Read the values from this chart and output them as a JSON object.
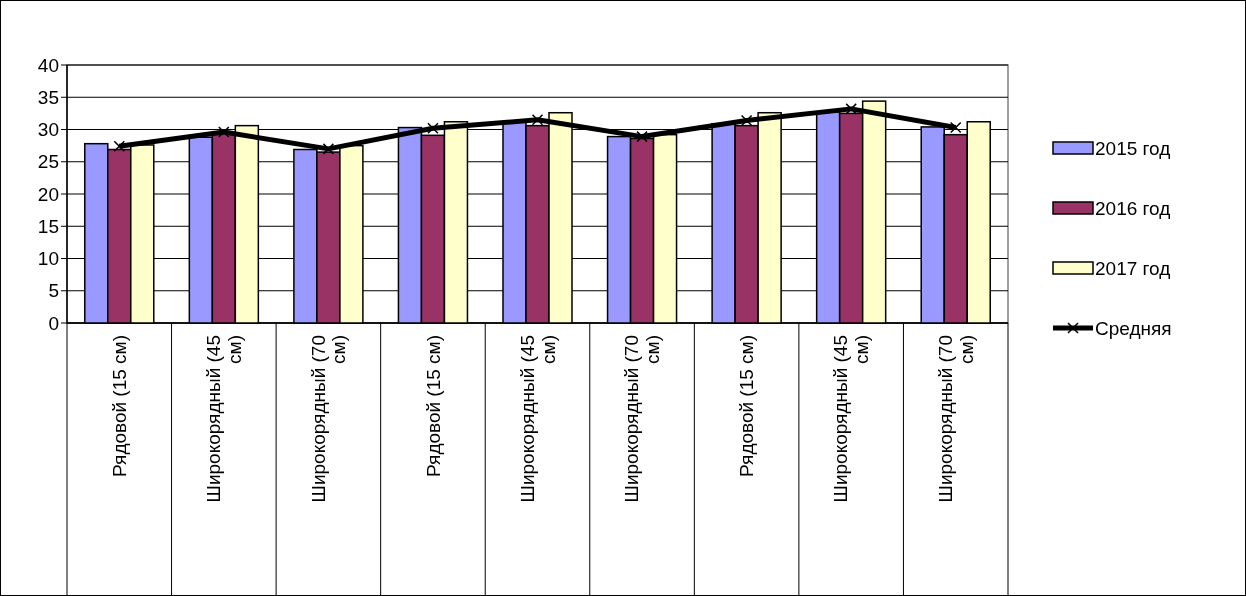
{
  "chart_data": {
    "type": "bar",
    "categories": [
      "Рядовой (15 см)",
      "Широкорядный (45 см)",
      "Широкорядный (70 см)",
      "Рядовой (15 см)",
      "Широкорядный (45 см)",
      "Широкорядный (70 см)",
      "Рядовой (15 см)",
      "Широкорядный (45 см)",
      "Широкорядный (70 см)"
    ],
    "series": [
      {
        "name": "2015 год",
        "color": "#9999ff",
        "values": [
          27.8,
          28.8,
          26.9,
          30.3,
          31.2,
          28.9,
          30.9,
          32.7,
          30.4
        ]
      },
      {
        "name": "2016 год",
        "color": "#993366",
        "values": [
          26.9,
          29.4,
          26.5,
          29.1,
          30.6,
          28.6,
          30.6,
          32.5,
          29.2
        ]
      },
      {
        "name": "2017 год",
        "color": "#ffffcc",
        "values": [
          27.6,
          30.6,
          27.5,
          31.2,
          32.6,
          29.2,
          32.6,
          34.4,
          31.2
        ]
      },
      {
        "name": "Средняя",
        "color": "#000000",
        "type": "line",
        "marker": "cross",
        "values": [
          27.4,
          29.6,
          27.0,
          30.2,
          31.5,
          28.9,
          31.4,
          33.2,
          30.3
        ]
      }
    ],
    "ylim": [
      0,
      40
    ],
    "yticks": [
      0,
      5,
      10,
      15,
      20,
      25,
      30,
      35,
      40
    ],
    "grid": "y",
    "legend": "right"
  }
}
